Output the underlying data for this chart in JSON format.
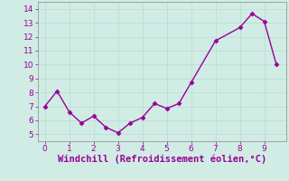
{
  "x": [
    0,
    0.5,
    1,
    1.5,
    2,
    2.5,
    3,
    3.5,
    4,
    4.5,
    5,
    5.5,
    6,
    7,
    8,
    8.5,
    9,
    9.5
  ],
  "y": [
    7.0,
    8.1,
    6.6,
    5.8,
    6.3,
    5.5,
    5.1,
    5.8,
    6.2,
    7.2,
    6.85,
    7.2,
    8.7,
    11.7,
    12.65,
    13.65,
    13.1,
    10.0
  ],
  "color": "#990099",
  "marker": "D",
  "markersize": 2.5,
  "linewidth": 1.0,
  "xlabel": "Windchill (Refroidissement éolien,°C)",
  "xlabel_color": "#990099",
  "xlabel_fontsize": 7.5,
  "xlim": [
    -0.3,
    9.9
  ],
  "ylim": [
    4.5,
    14.5
  ],
  "yticks": [
    5,
    6,
    7,
    8,
    9,
    10,
    11,
    12,
    13,
    14
  ],
  "xticks": [
    0,
    1,
    2,
    3,
    4,
    5,
    6,
    7,
    8,
    9
  ],
  "tick_color": "#990099",
  "tick_fontsize": 6.5,
  "grid_color": "#b8ddd0",
  "bg_color": "#d0ece4",
  "spine_color": "#888888"
}
